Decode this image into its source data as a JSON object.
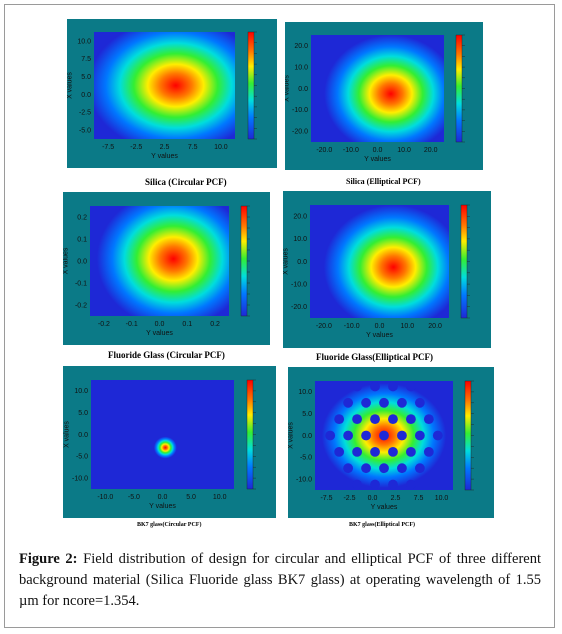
{
  "panels": [
    {
      "caption": "Silica (Circular PCF)",
      "xlabel": "Y values",
      "ylabel": "X values",
      "xticks": [
        "-7.5",
        "-2.5",
        "2.5",
        "7.5",
        "10.0"
      ],
      "yticks": [
        "10.0",
        "7.5",
        "5.0",
        "0.0",
        "-2.5",
        "-5.0"
      ],
      "field": "gaussian-circular"
    },
    {
      "caption": "Silica (Elliptical PCF)",
      "xlabel": "Y values",
      "ylabel": "X values",
      "xticks": [
        "-20.0",
        "-10.0",
        "0.0",
        "10.0",
        "20.0"
      ],
      "yticks": [
        "20.0",
        "10.0",
        "0.0",
        "-10.0",
        "-20.0"
      ],
      "field": "gaussian-elliptical"
    },
    {
      "caption": "Fluoride Glass (Circular PCF)",
      "xlabel": "Y values",
      "ylabel": "X values",
      "xticks": [
        "-0.2",
        "-0.1",
        "0.0",
        "0.1",
        "0.2"
      ],
      "yticks": [
        "0.2",
        "0.1",
        "0.0",
        "-0.1",
        "-0.2"
      ],
      "field": "gaussian-fluoride-circular"
    },
    {
      "caption": "Fluoride Glass(Elliptical PCF)",
      "xlabel": "Y values",
      "ylabel": "X values",
      "xticks": [
        "-20.0",
        "-10.0",
        "0.0",
        "10.0",
        "20.0"
      ],
      "yticks": [
        "20.0",
        "10.0",
        "0.0",
        "-10.0",
        "-20.0"
      ],
      "field": "gaussian-elliptical"
    },
    {
      "caption": "BK7 glass(Circular PCF)",
      "xlabel": "Y values",
      "ylabel": "X values",
      "xticks": [
        "-10.0",
        "-5.0",
        "0.0",
        "5.0",
        "10.0"
      ],
      "yticks": [
        "10.0",
        "5.0",
        "0.0",
        "-5.0",
        "-10.0"
      ],
      "field": "small-spot"
    },
    {
      "caption": "BK7 glass(Elliptical PCF)",
      "xlabel": "Y values",
      "ylabel": "X values",
      "xticks": [
        "-7.5",
        "-2.5",
        "0.0",
        "2.5",
        "7.5",
        "10.0"
      ],
      "yticks": [
        "10.0",
        "5.0",
        "0.0",
        "-5.0",
        "-10.0"
      ],
      "field": "hexagonal-lattice"
    }
  ],
  "figure_caption": {
    "label": "Figure 2:",
    "text": " Field distribution of design  for circular and elliptical PCF of three different background material (Silica  Fluoride glass BK7 glass) at operating wavelength of 1.55 µm for ncore=1.354."
  }
}
